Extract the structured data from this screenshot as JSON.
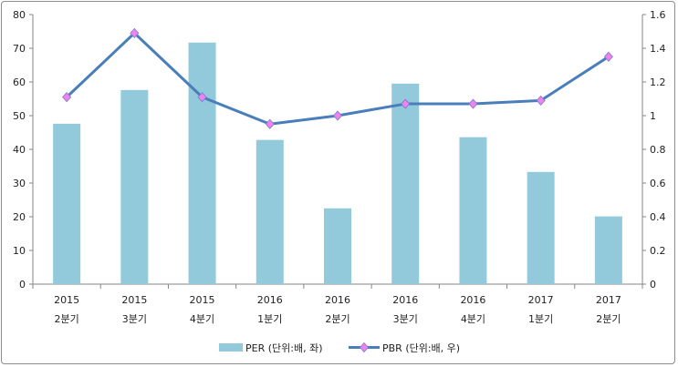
{
  "chart_data": {
    "type": "bar",
    "categories": [
      [
        "2015",
        "2분기"
      ],
      [
        "2015",
        "3분기"
      ],
      [
        "2015",
        "4분기"
      ],
      [
        "2016",
        "1분기"
      ],
      [
        "2016",
        "2분기"
      ],
      [
        "2016",
        "3분기"
      ],
      [
        "2016",
        "4분기"
      ],
      [
        "2017",
        "1분기"
      ],
      [
        "2017",
        "2분기"
      ]
    ],
    "series": [
      {
        "name": "PER (단위:배, 좌)",
        "type": "bar",
        "axis": "left",
        "color": "#92cadb",
        "values": [
          47.6,
          57.6,
          71.7,
          42.8,
          22.5,
          59.5,
          43.6,
          33.3,
          20.1
        ]
      },
      {
        "name": "PBR (단위:배, 우)",
        "type": "line",
        "axis": "right",
        "color": "#4a7ebb",
        "marker_color": "#ee82ee",
        "values": [
          1.11,
          1.49,
          1.11,
          0.95,
          1.0,
          1.07,
          1.07,
          1.09,
          1.35
        ]
      }
    ],
    "y_left": {
      "min": 0,
      "max": 80,
      "ticks": [
        "0",
        "10",
        "20",
        "30",
        "40",
        "50",
        "60",
        "70",
        "80"
      ]
    },
    "y_right": {
      "min": 0,
      "max": 1.6,
      "ticks": [
        "0",
        "0.2",
        "0.4",
        "0.6",
        "0.8",
        "1",
        "1.2",
        "1.4",
        "1.6"
      ]
    },
    "grid": false,
    "legend": "bottom"
  }
}
